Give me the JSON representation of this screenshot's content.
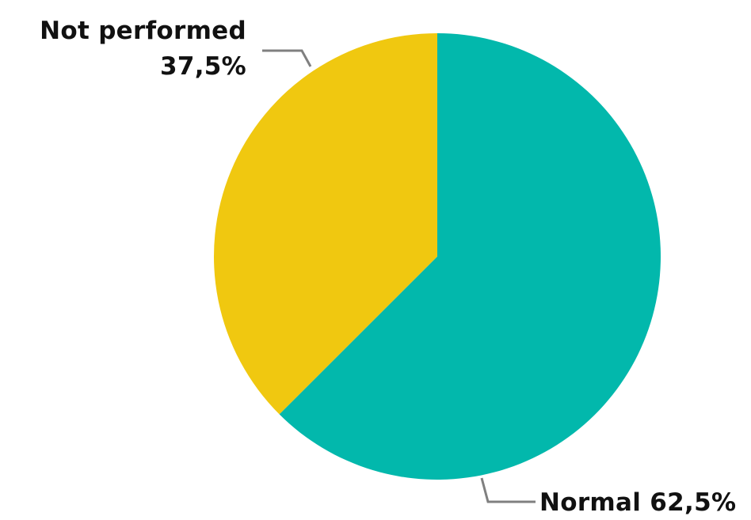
{
  "chart_data": {
    "type": "pie",
    "slices": [
      {
        "name": "Normal",
        "value": 62.5,
        "label": "Normal 62,5%",
        "color": "#02B8AC"
      },
      {
        "name": "Not performed",
        "value": 37.5,
        "label_lines": [
          "Not performed",
          "37,5%"
        ],
        "color": "#F0C810"
      }
    ],
    "start_angle": "12 o'clock",
    "direction": "clockwise",
    "leader_line_color": "#808080",
    "legend": "none"
  }
}
